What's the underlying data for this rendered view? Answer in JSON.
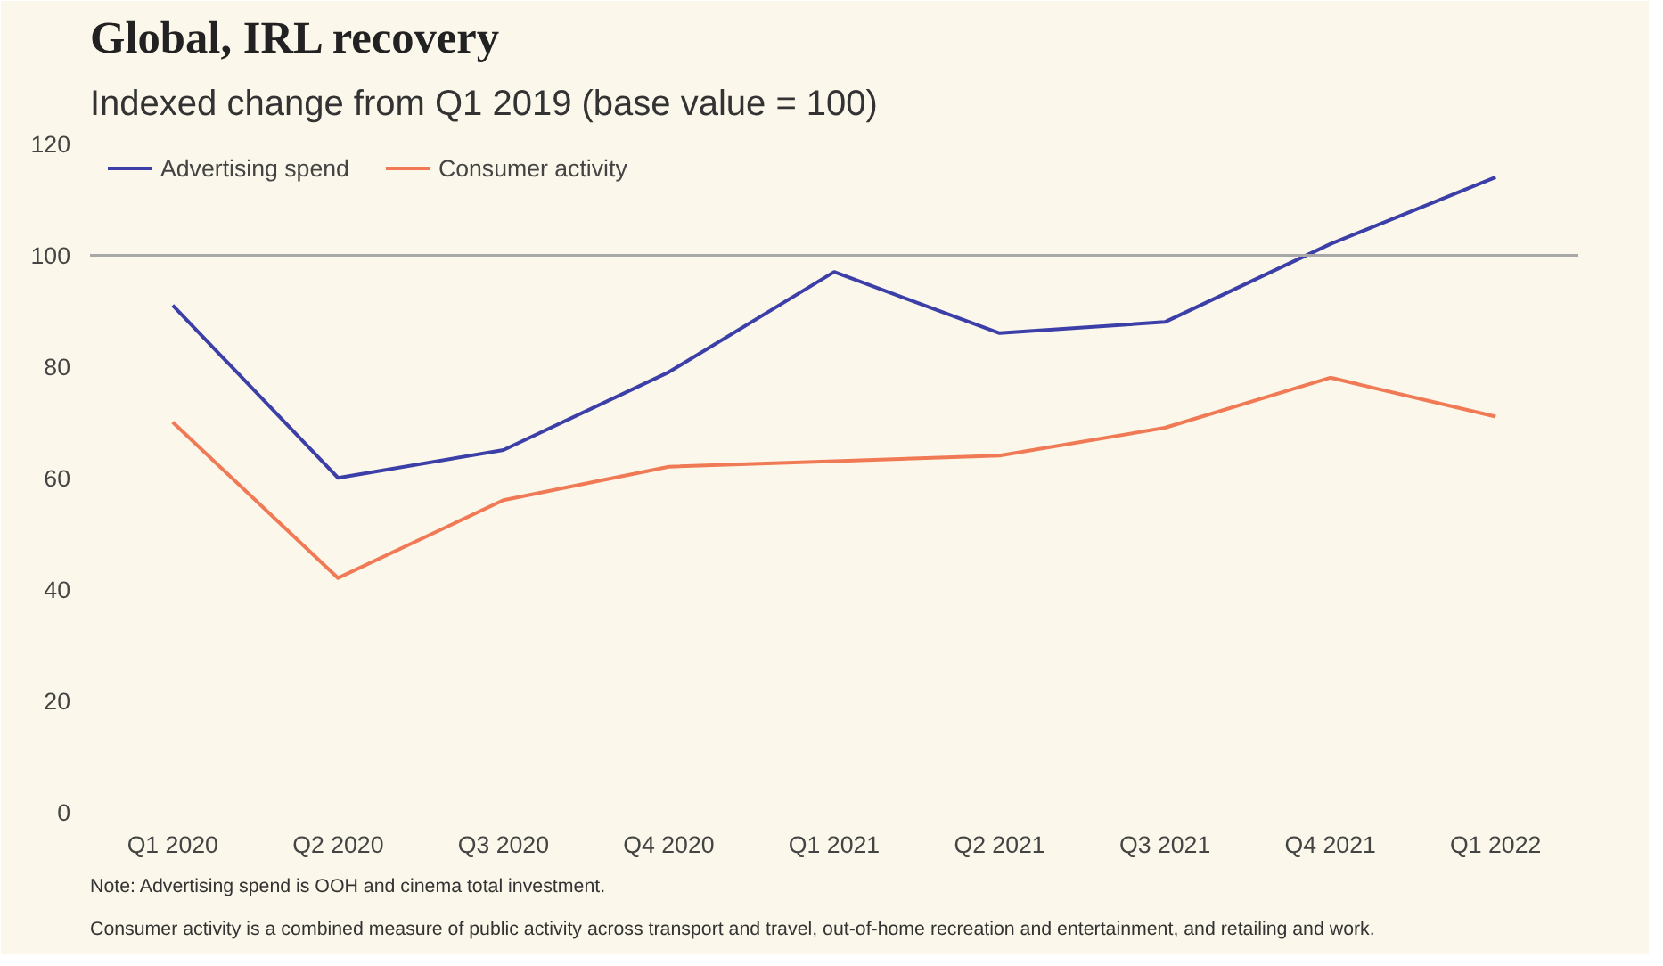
{
  "chart_data": {
    "type": "line",
    "title": "Global, IRL recovery",
    "subtitle": "Indexed change from Q1 2019 (base value = 100)",
    "categories": [
      "Q1 2020",
      "Q2 2020",
      "Q3 2020",
      "Q4 2020",
      "Q1 2021",
      "Q2 2021",
      "Q3 2021",
      "Q4 2021",
      "Q1 2022"
    ],
    "series": [
      {
        "name": "Advertising spend",
        "color": "#3c3fa8",
        "values": [
          91,
          60,
          65,
          79,
          97,
          86,
          88,
          102,
          114
        ]
      },
      {
        "name": "Consumer activity",
        "color": "#f07a55",
        "values": [
          70,
          42,
          56,
          62,
          63,
          64,
          69,
          78,
          71
        ]
      }
    ],
    "ylim": [
      0,
      122
    ],
    "yticks": [
      0,
      20,
      40,
      60,
      80,
      100,
      120
    ],
    "grid": false,
    "legend": "top left",
    "marker": "none",
    "line_style": "solid",
    "ref_lines": [
      {
        "axis": "y",
        "value": 100,
        "color": "#a8a8a8"
      }
    ],
    "annotations": [
      "Note: Advertising  spend is OOH and cinema total investment.",
      "Consumer activity is a combined measure of public activity across transport and travel, out-of-home recreation and entertainment, and retailing and work."
    ]
  }
}
